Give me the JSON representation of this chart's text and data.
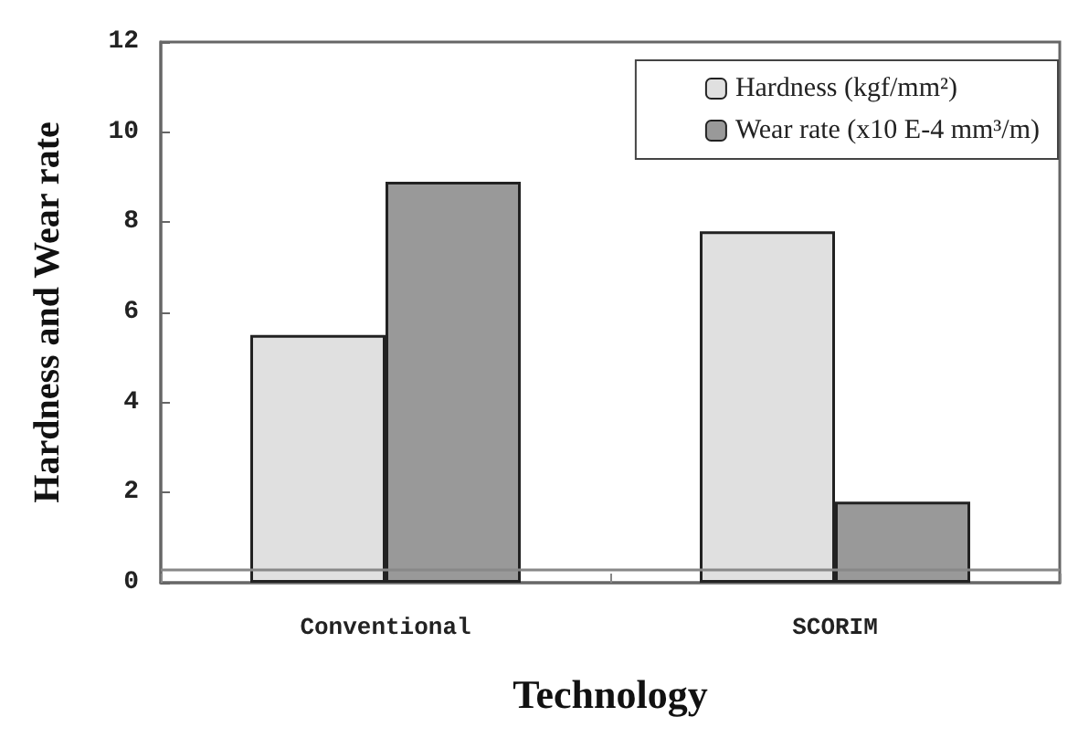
{
  "chart_data": {
    "type": "bar",
    "xlabel": "Technology",
    "ylabel": "Hardness and Wear rate",
    "categories": [
      "Conventional",
      "SCORIM"
    ],
    "series": [
      {
        "name": "Hardness (kgf/mm²)",
        "color": "#e0e0e0",
        "values": [
          5.5,
          7.8
        ]
      },
      {
        "name": "Wear rate (x10 E-4 mm³/m)",
        "color": "#999999",
        "values": [
          8.9,
          1.8
        ]
      }
    ],
    "ylim": [
      0,
      12
    ],
    "yticks": [
      0,
      2,
      4,
      6,
      8,
      10,
      12
    ],
    "ref_lines": [
      {
        "axis": "y",
        "value": 0.3,
        "color": "#888888"
      }
    ],
    "grid": false,
    "legend": "top right"
  }
}
